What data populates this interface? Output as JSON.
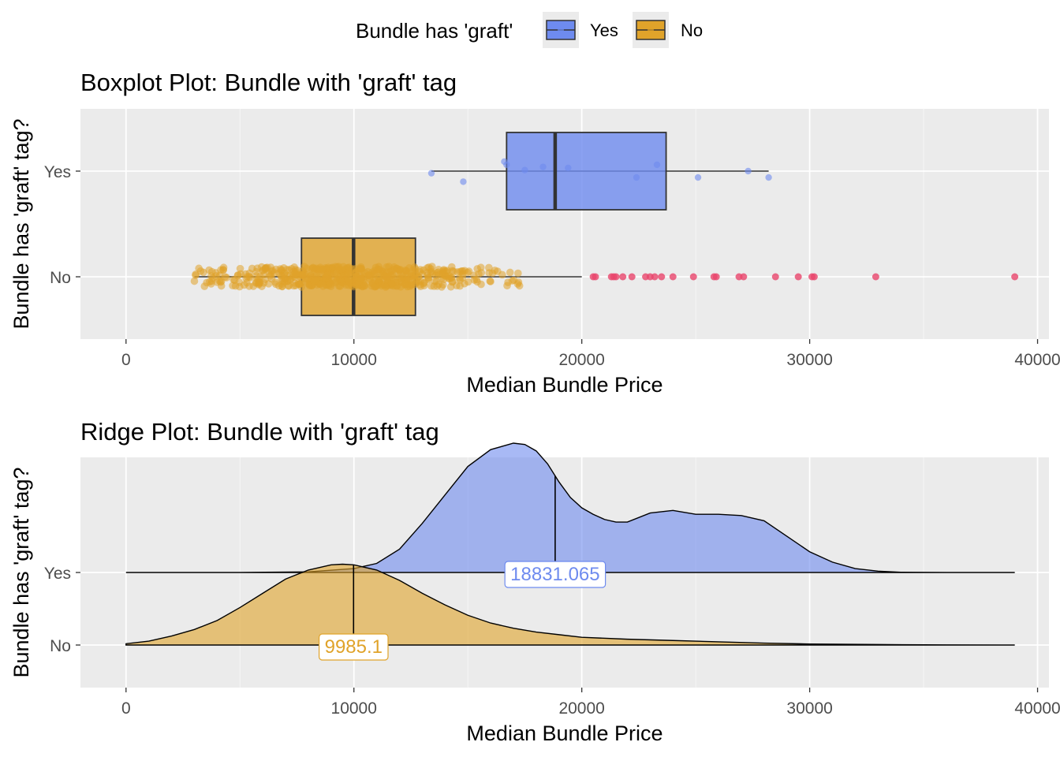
{
  "legend": {
    "title": "Bundle has 'graft'",
    "items": [
      {
        "label": "Yes",
        "color": "#6E8BEF"
      },
      {
        "label": "No",
        "color": "#E0A32A"
      }
    ],
    "placement": "top"
  },
  "colors": {
    "yes": "#6E8BEF",
    "no": "#E0A32A",
    "outlier": "#E8456B",
    "panel": "#EBEBEB",
    "grid": "#FFFFFF"
  },
  "chart_data": [
    {
      "type": "boxplot",
      "title": "Boxplot Plot: Bundle with 'graft' tag",
      "xlabel": "Median Bundle Price",
      "ylabel": "Bundle has 'graft' tag?",
      "xlim": [
        -2000,
        40500
      ],
      "x_ticks": [
        0,
        10000,
        20000,
        30000,
        40000
      ],
      "x_tick_labels": [
        "0",
        "10000",
        "20000",
        "30000",
        "40000"
      ],
      "categories": [
        "Yes",
        "No"
      ],
      "grid": true,
      "series": [
        {
          "category": "Yes",
          "whisker_low": 13400,
          "q1": 16700,
          "median": 18831.065,
          "q3": 23700,
          "whisker_high": 28200,
          "points": [
            13400,
            14800,
            16600,
            16700,
            17500,
            18300,
            19400,
            22400,
            23300,
            25100,
            27300,
            28200
          ],
          "point_offsets": [
            -0.02,
            -0.1,
            0.09,
            0.06,
            0.01,
            0.04,
            0.03,
            -0.06,
            0.06,
            -0.06,
            0.0,
            -0.06
          ]
        },
        {
          "category": "No",
          "whisker_low": 3000,
          "q1": 7700,
          "median": 9985.1,
          "q3": 12700,
          "whisker_high": 20000,
          "outliers": [
            20500,
            20600,
            21300,
            21400,
            21500,
            21800,
            22200,
            22800,
            23000,
            23200,
            23500,
            24000,
            24900,
            25800,
            25900,
            26900,
            27100,
            28500,
            29500,
            30100,
            30200,
            32900,
            39000
          ],
          "jitter_range": [
            3000,
            17300
          ]
        }
      ]
    },
    {
      "type": "ridge",
      "title": "Ridge Plot: Bundle with 'graft' tag",
      "xlabel": "Median Bundle Price",
      "ylabel": "Bundle has 'graft' tag?",
      "xlim": [
        -2000,
        40500
      ],
      "x_ticks": [
        0,
        10000,
        20000,
        30000,
        40000
      ],
      "x_tick_labels": [
        "0",
        "10000",
        "20000",
        "30000",
        "40000"
      ],
      "categories": [
        "Yes",
        "No"
      ],
      "grid": true,
      "series": [
        {
          "name": "Yes",
          "median": 18831.065,
          "median_label": "18831.065",
          "x": [
            0,
            5000,
            8000,
            10000,
            11000,
            12000,
            13000,
            14000,
            15000,
            16000,
            17000,
            17500,
            18000,
            18500,
            19000,
            19500,
            20000,
            20500,
            21000,
            21500,
            22000,
            23000,
            24000,
            25000,
            26000,
            27000,
            28000,
            29000,
            30000,
            31000,
            32000,
            33000,
            34000,
            36000,
            39000
          ],
          "density": [
            0.0,
            0.0,
            0.005,
            0.03,
            0.07,
            0.18,
            0.38,
            0.6,
            0.82,
            0.95,
            1.0,
            0.99,
            0.94,
            0.84,
            0.7,
            0.58,
            0.5,
            0.45,
            0.41,
            0.39,
            0.39,
            0.46,
            0.48,
            0.45,
            0.45,
            0.44,
            0.4,
            0.28,
            0.16,
            0.08,
            0.03,
            0.01,
            0.002,
            0.0,
            0.0
          ]
        },
        {
          "name": "No",
          "median": 9985.1,
          "median_label": "9985.1",
          "x": [
            0,
            1000,
            2000,
            3000,
            4000,
            5000,
            6000,
            7000,
            8000,
            9000,
            9500,
            10000,
            11000,
            12000,
            13000,
            14000,
            15000,
            16000,
            17000,
            18000,
            19000,
            20000,
            22000,
            24000,
            26000,
            28000,
            30000,
            33000,
            36000,
            39000
          ],
          "density": [
            0.01,
            0.03,
            0.07,
            0.12,
            0.19,
            0.29,
            0.4,
            0.51,
            0.58,
            0.62,
            0.625,
            0.62,
            0.58,
            0.5,
            0.4,
            0.31,
            0.23,
            0.17,
            0.13,
            0.1,
            0.08,
            0.06,
            0.045,
            0.035,
            0.025,
            0.015,
            0.008,
            0.004,
            0.001,
            0.0
          ]
        }
      ]
    }
  ]
}
